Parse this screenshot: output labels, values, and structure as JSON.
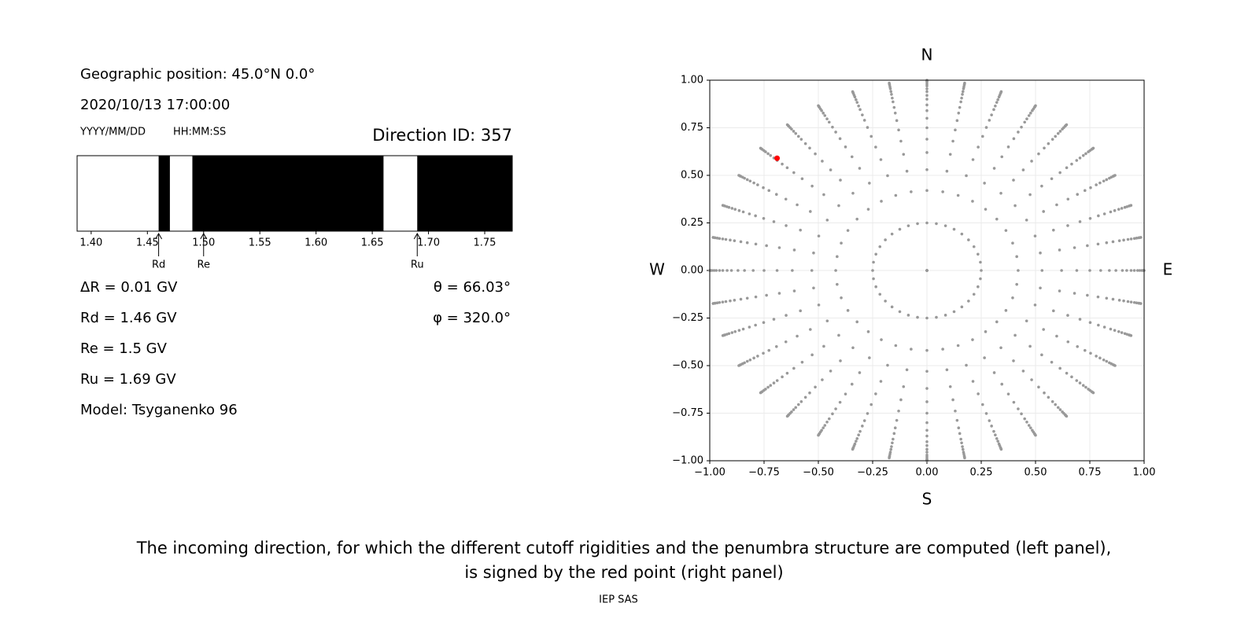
{
  "header": {
    "position": "Geographic position: 45.0°N 0.0°",
    "datetime": "2020/10/13 17:00:00",
    "date_format": "YYYY/MM/DD",
    "time_format": "HH:MM:SS",
    "direction": "Direction ID: 357"
  },
  "chart_data": [
    {
      "type": "penumbra",
      "xlim": [
        1.3875,
        1.7745
      ],
      "xticks": [
        {
          "value": 1.4,
          "label": "1.40"
        },
        1.45,
        {
          "value": 1.5,
          "label": "1.50"
        },
        1.55,
        {
          "value": 1.6,
          "label": "1.60"
        },
        1.65,
        {
          "value": 1.7,
          "label": "1.70"
        },
        1.75
      ],
      "segments": {
        "starts": [
          1.46,
          1.49,
          1.69
        ],
        "ends": [
          1.47,
          1.66,
          1.7745
        ],
        "color": "#000000"
      },
      "markers": {
        "labels": [
          "Rd",
          "Re",
          "Ru"
        ],
        "values": [
          1.46,
          1.5,
          1.69
        ]
      }
    },
    {
      "type": "scatter",
      "xlim": [
        -1,
        1
      ],
      "ylim": [
        -1,
        1
      ],
      "xticks": [
        {
          "value": -1,
          "label": "−1.00"
        },
        {
          "value": -0.75,
          "label": "−0.75"
        },
        {
          "value": -0.5,
          "label": "−0.50"
        },
        {
          "value": -0.25,
          "label": "−0.25"
        },
        {
          "value": 0,
          "label": "0.00"
        },
        {
          "value": 0.25,
          "label": "0.25"
        },
        {
          "value": 0.5,
          "label": "0.50"
        },
        {
          "value": 0.75,
          "label": "0.75"
        },
        {
          "value": 1,
          "label": "1.00"
        }
      ],
      "yticks": [
        {
          "value": -1,
          "label": "−1.00"
        },
        {
          "value": -0.75,
          "label": "−0.75"
        },
        {
          "value": -0.5,
          "label": "−0.50"
        },
        {
          "value": -0.25,
          "label": "−0.25"
        },
        {
          "value": 0,
          "label": "0.00"
        },
        {
          "value": 0.25,
          "label": "0.25"
        },
        {
          "value": 0.5,
          "label": "0.50"
        },
        {
          "value": 0.75,
          "label": "0.75"
        },
        {
          "value": 1,
          "label": "1.00"
        }
      ],
      "grid": true,
      "compass": {
        "north": "N",
        "south": "S",
        "west": "W",
        "east": "E"
      },
      "directions": {
        "color": "#999999",
        "azimuths": [
          0,
          10,
          20,
          30,
          40,
          50,
          60,
          70,
          80,
          90,
          100,
          110,
          120,
          130,
          140,
          150,
          160,
          170,
          180,
          190,
          200,
          210,
          220,
          230,
          240,
          250,
          260,
          270,
          280,
          290,
          300,
          310,
          320,
          330,
          340,
          350
        ],
        "radii": [
          0,
          0.25,
          0.42,
          0.53,
          0.62,
          0.69,
          0.75,
          0.8,
          0.84,
          0.87,
          0.9,
          0.92,
          0.94,
          0.955,
          0.97,
          0.98,
          0.99,
          0.995,
          1
        ]
      },
      "selected": {
        "x": -0.69,
        "y": 0.59,
        "color": "#ff0000"
      }
    }
  ],
  "results": {
    "left": [
      "ΔR = 0.01 GV",
      "Rd = 1.46 GV",
      "Re = 1.5 GV",
      "Ru = 1.69 GV",
      "Model: Tsyganenko 96"
    ],
    "right": [
      "θ = 66.03°",
      "φ = 320.0°"
    ]
  },
  "caption": [
    "The incoming direction, for which the different cutoff rigidities and the penumbra structure are computed (left panel),",
    "is signed by the red point (right panel)"
  ],
  "footer": "IEP SAS"
}
